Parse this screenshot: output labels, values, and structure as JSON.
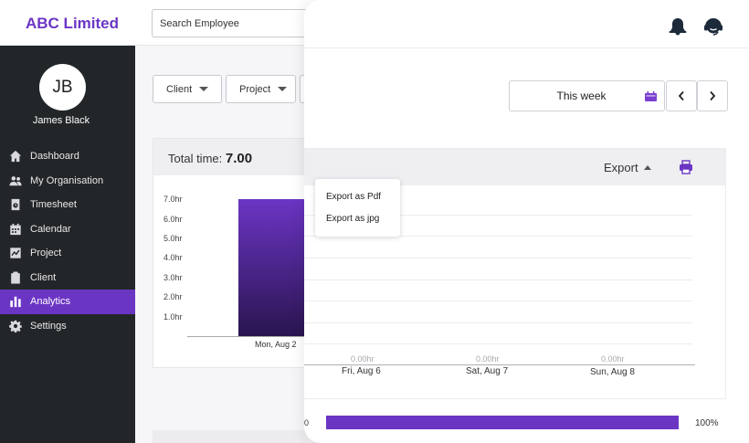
{
  "app": {
    "brand": "ABC Limited"
  },
  "search": {
    "placeholder": "Search Employee"
  },
  "user": {
    "initials": "JB",
    "name": "James Black"
  },
  "sidebar": {
    "items": [
      {
        "label": "Dashboard",
        "icon": "home-icon"
      },
      {
        "label": "My Organisation",
        "icon": "people-icon"
      },
      {
        "label": "Timesheet",
        "icon": "timesheet-icon"
      },
      {
        "label": "Calendar",
        "icon": "calendar-icon"
      },
      {
        "label": "Project",
        "icon": "project-icon"
      },
      {
        "label": "Client",
        "icon": "clipboard-icon"
      },
      {
        "label": "Analytics",
        "icon": "bar-chart-icon",
        "active": true
      },
      {
        "label": "Settings",
        "icon": "gear-icon"
      }
    ]
  },
  "filters": {
    "client": "Client",
    "project": "Project"
  },
  "summary": {
    "total_label": "Total time:",
    "total_value": "7.00"
  },
  "date_range": {
    "label": "This week"
  },
  "export": {
    "label": "Export",
    "options": [
      "Export as Pdf",
      "Export as jpg"
    ]
  },
  "chart_data": {
    "type": "bar",
    "categories": [
      "Mon, Aug 2",
      "Fri, Aug 6",
      "Sat, Aug 7",
      "Sun, Aug 8"
    ],
    "values": [
      7.0,
      0,
      0,
      0
    ],
    "value_labels": [
      "",
      "0.00hr",
      "0.00hr",
      "0.00hr"
    ],
    "ytick_labels": [
      "7.0hr",
      "6.0hr",
      "5.0hr",
      "4.0hr",
      "3.0hr",
      "2.0hr",
      "1.0hr"
    ],
    "ylim": [
      0,
      7
    ],
    "title": "",
    "xlabel": "",
    "ylabel": ""
  },
  "progress": {
    "start_label": "0",
    "percent_label": "100%",
    "percent": 100
  },
  "colors": {
    "accent": "#6b35c4",
    "sidebar": "#222628"
  }
}
